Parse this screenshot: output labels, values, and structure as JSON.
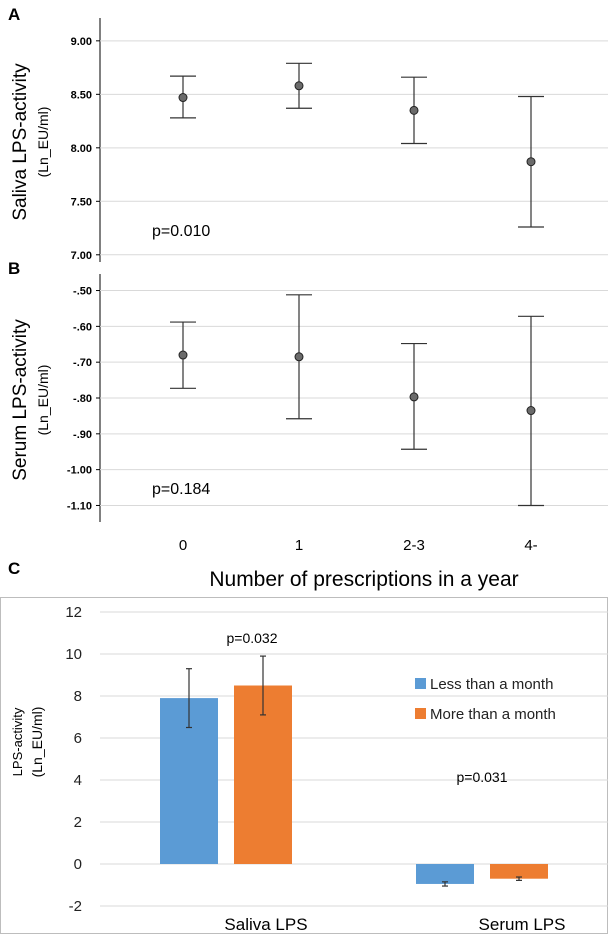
{
  "panel_labels": [
    "A",
    "B",
    "C"
  ],
  "shared_x_title": "Number of prescriptions in a year",
  "chart_data": [
    {
      "type": "scatter",
      "panel": "A",
      "ylabel": "Saliva LPS-activity",
      "ylabel_unit": "(Ln_EU/ml)",
      "categories": [
        "0",
        "1",
        "2-3",
        "4-"
      ],
      "yticks": [
        "7.00",
        "7.50",
        "8.00",
        "8.50",
        "9.00"
      ],
      "ylim": [
        6.97,
        9.12
      ],
      "grid": true,
      "points": [
        {
          "x": "0",
          "y": 8.47,
          "low": 8.28,
          "high": 8.67
        },
        {
          "x": "1",
          "y": 8.58,
          "low": 8.37,
          "high": 8.79
        },
        {
          "x": "2-3",
          "y": 8.35,
          "low": 8.04,
          "high": 8.66
        },
        {
          "x": "4-",
          "y": 7.87,
          "low": 7.26,
          "high": 8.48
        }
      ],
      "annotation": "p=0.010"
    },
    {
      "type": "scatter",
      "panel": "B",
      "ylabel": "Serum LPS-activity",
      "ylabel_unit": "(Ln_EU/ml)",
      "categories": [
        "0",
        "1",
        "2-3",
        "4-"
      ],
      "yticks": [
        "-1.10",
        "-1.00",
        "-.90",
        "-.80",
        "-.70",
        "-.60",
        "-.50"
      ],
      "ylim": [
        -1.135,
        -0.465
      ],
      "grid": true,
      "points": [
        {
          "x": "0",
          "y": -0.68,
          "low": -0.773,
          "high": -0.588
        },
        {
          "x": "1",
          "y": -0.685,
          "low": -0.858,
          "high": -0.512
        },
        {
          "x": "2-3",
          "y": -0.797,
          "low": -0.943,
          "high": -0.648
        },
        {
          "x": "4-",
          "y": -0.835,
          "low": -1.1,
          "high": -0.572
        }
      ],
      "annotation": "p=0.184"
    },
    {
      "type": "bar",
      "panel": "C",
      "ylabel": "LPS-activity",
      "ylabel_unit": "(Ln_EU/ml)",
      "categories": [
        "Saliva LPS",
        "Serum LPS"
      ],
      "yticks": [
        "-2",
        "0",
        "2",
        "4",
        "6",
        "8",
        "10",
        "12"
      ],
      "ylim": [
        -2,
        12
      ],
      "grid": true,
      "legend_position": "right",
      "series": [
        {
          "name": "Less than a month",
          "color": "#5b9bd5",
          "values": [
            7.9,
            -0.95
          ],
          "err_low": [
            6.5,
            -1.05
          ],
          "err_high": [
            9.3,
            -0.85
          ]
        },
        {
          "name": "More than a month",
          "color": "#ed7d31",
          "values": [
            8.5,
            -0.7
          ],
          "err_low": [
            7.1,
            -0.78
          ],
          "err_high": [
            9.9,
            -0.62
          ]
        }
      ],
      "annotations": [
        "p=0.032",
        "p=0.031"
      ]
    }
  ]
}
